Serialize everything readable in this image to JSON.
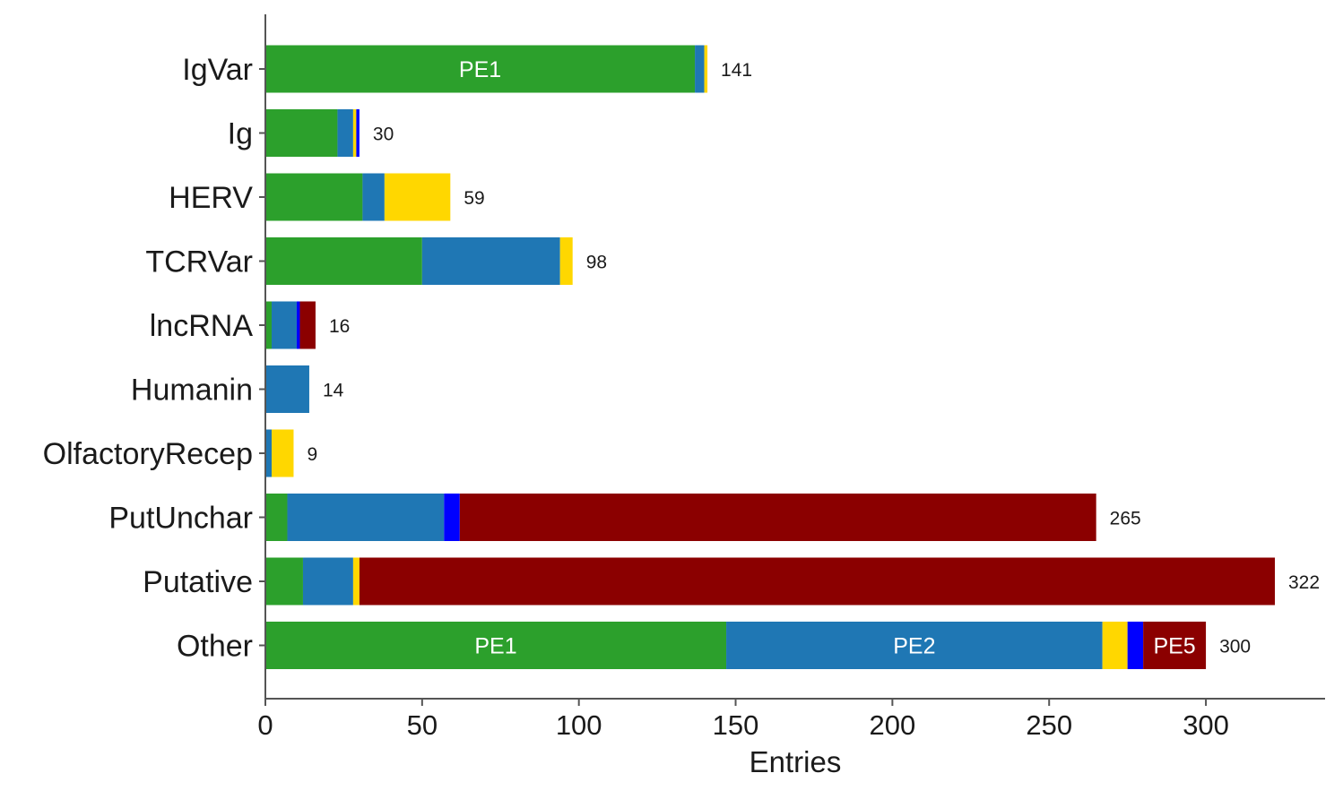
{
  "chart_data": {
    "type": "bar",
    "orientation": "horizontal",
    "stacked": true,
    "xlabel": "Entries",
    "ylabel": "",
    "xlim": [
      0,
      340
    ],
    "xticks": [
      0,
      50,
      100,
      150,
      200,
      250,
      300
    ],
    "xtick_labels": [
      "0",
      "50",
      "100",
      "150",
      "200",
      "250",
      "300"
    ],
    "grid": false,
    "legend": "none",
    "categories": [
      "IgVar",
      "Ig",
      "HERV",
      "TCRVar",
      "lncRNA",
      "Humanin",
      "OlfactoryRecep",
      "PutUnchar",
      "Putative",
      "Other"
    ],
    "series": [
      {
        "color": "#2ca02c",
        "values": [
          137,
          23,
          31,
          50,
          2,
          0,
          0,
          7,
          12,
          147
        ]
      },
      {
        "color": "#1f77b4",
        "values": [
          3,
          5,
          7,
          44,
          8,
          14,
          2,
          50,
          16,
          120
        ]
      },
      {
        "color": "#ffd700",
        "values": [
          1,
          1,
          21,
          4,
          0,
          0,
          7,
          0,
          2,
          8
        ]
      },
      {
        "color": "#0000ff",
        "values": [
          0,
          1,
          0,
          0,
          1,
          0,
          0,
          5,
          0,
          5
        ]
      },
      {
        "color": "#8b0000",
        "values": [
          0,
          0,
          0,
          0,
          5,
          0,
          0,
          203,
          292,
          20
        ]
      }
    ],
    "totals": [
      141,
      30,
      59,
      98,
      16,
      14,
      9,
      265,
      322,
      300
    ],
    "total_labels": [
      "141",
      "30",
      "59",
      "98",
      "16",
      "14",
      "9",
      "265",
      "322",
      "300"
    ],
    "category_labels": [
      "IgVar",
      "Ig",
      "HERV",
      "TCRVar",
      "lncRNA",
      "Humanin",
      "OlfactoryRecep",
      "PutUnchar",
      "Putative",
      "Other"
    ],
    "annotations": [
      {
        "category": "IgVar",
        "series_index": 0,
        "text": "PE1"
      },
      {
        "category": "Other",
        "series_index": 0,
        "text": "PE1"
      },
      {
        "category": "Other",
        "series_index": 1,
        "text": "PE2"
      },
      {
        "category": "Other",
        "series_index": 4,
        "text": "PE5"
      }
    ]
  }
}
